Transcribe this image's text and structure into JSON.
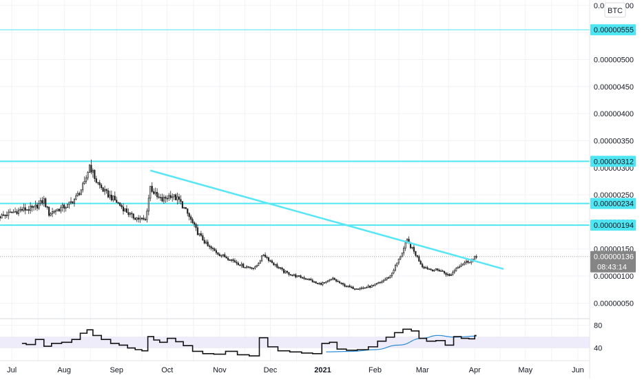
{
  "currency_label": "BTC",
  "chart_data": {
    "type": "candlestick",
    "price_axis": {
      "tick_labels": [
        "0.00000600",
        "0.00000500",
        "0.00000450",
        "0.00000400",
        "0.00000350",
        "0.00000300",
        "0.00000250",
        "0.00000200",
        "0.00000150",
        "0.00000100",
        "0.00000050"
      ],
      "ylim": [
        2.5e-07,
        6.1e-06
      ]
    },
    "time_axis": {
      "tick_labels": [
        "Jul",
        "Aug",
        "Sep",
        "Oct",
        "Nov",
        "Dec",
        "2021",
        "Feb",
        "Mar",
        "Apr",
        "May",
        "Jun"
      ],
      "tick_dates": [
        "2020-07-01",
        "2020-08-01",
        "2020-09-01",
        "2020-10-01",
        "2020-11-01",
        "2020-12-01",
        "2021-01-01",
        "2021-02-01",
        "2021-03-01",
        "2021-04-01",
        "2021-05-01",
        "2021-06-01"
      ],
      "xlim": [
        "2020-06-24",
        "2021-06-08"
      ]
    },
    "current_price": {
      "label": "0.00000136",
      "countdown": "08:43:14",
      "value": 1.36e-06
    },
    "horizontal_levels": [
      {
        "label": "0.00000555",
        "value": 5.55e-06
      },
      {
        "label": "0.00000312",
        "value": 3.12e-06
      },
      {
        "label": "0.00000234",
        "value": 2.34e-06
      },
      {
        "label": "0.00000194",
        "value": 1.94e-06
      }
    ],
    "trendline": {
      "start": {
        "date": "2020-09-21",
        "value": 2.95e-06
      },
      "end": {
        "date": "2021-04-18",
        "value": 1.13e-06
      }
    },
    "candle_path": [
      [
        "2020-06-24",
        2.1e-06
      ],
      [
        "2020-07-06",
        2.22e-06
      ],
      [
        "2020-07-14",
        2.25e-06
      ],
      [
        "2020-07-20",
        2.4e-06
      ],
      [
        "2020-07-23",
        2.15e-06
      ],
      [
        "2020-07-27",
        2.22e-06
      ],
      [
        "2020-08-03",
        2.3e-06
      ],
      [
        "2020-08-08",
        2.45e-06
      ],
      [
        "2020-08-13",
        2.7e-06
      ],
      [
        "2020-08-16",
        3.05e-06
      ],
      [
        "2020-08-20",
        2.75e-06
      ],
      [
        "2020-08-25",
        2.55e-06
      ],
      [
        "2020-08-31",
        2.4e-06
      ],
      [
        "2020-09-05",
        2.25e-06
      ],
      [
        "2020-09-10",
        2.1e-06
      ],
      [
        "2020-09-14",
        2.06e-06
      ],
      [
        "2020-09-18",
        2.03e-06
      ],
      [
        "2020-09-21",
        2.65e-06
      ],
      [
        "2020-09-25",
        2.45e-06
      ],
      [
        "2020-09-28",
        2.4e-06
      ],
      [
        "2020-10-03",
        2.5e-06
      ],
      [
        "2020-10-08",
        2.4e-06
      ],
      [
        "2020-10-13",
        2.15e-06
      ],
      [
        "2020-10-19",
        1.8e-06
      ],
      [
        "2020-10-25",
        1.55e-06
      ],
      [
        "2020-11-01",
        1.4e-06
      ],
      [
        "2020-11-08",
        1.3e-06
      ],
      [
        "2020-11-15",
        1.18e-06
      ],
      [
        "2020-11-22",
        1.15e-06
      ],
      [
        "2020-11-27",
        1.4e-06
      ],
      [
        "2020-12-02",
        1.25e-06
      ],
      [
        "2020-12-09",
        1.08e-06
      ],
      [
        "2020-12-16",
        1e-06
      ],
      [
        "2020-12-23",
        9.5e-07
      ],
      [
        "2020-12-29",
        8.5e-07
      ],
      [
        "2021-01-03",
        8.8e-07
      ],
      [
        "2021-01-07",
        9.5e-07
      ],
      [
        "2021-01-12",
        8.5e-07
      ],
      [
        "2021-01-18",
        7.8e-07
      ],
      [
        "2021-01-25",
        7.8e-07
      ],
      [
        "2021-01-31",
        8.2e-07
      ],
      [
        "2021-02-05",
        9e-07
      ],
      [
        "2021-02-10",
        1e-06
      ],
      [
        "2021-02-15",
        1.3e-06
      ],
      [
        "2021-02-20",
        1.65e-06
      ],
      [
        "2021-02-25",
        1.4e-06
      ],
      [
        "2021-03-01",
        1.18e-06
      ],
      [
        "2021-03-06",
        1.12e-06
      ],
      [
        "2021-03-12",
        1.1e-06
      ],
      [
        "2021-03-17",
        1e-06
      ],
      [
        "2021-03-22",
        1.18e-06
      ],
      [
        "2021-03-26",
        1.25e-06
      ],
      [
        "2021-03-31",
        1.3e-06
      ],
      [
        "2021-04-02",
        1.36e-06
      ]
    ],
    "oscillator": {
      "tick_labels": [
        "80",
        "40"
      ],
      "ylim": [
        20,
        88
      ],
      "band": [
        40,
        60
      ],
      "line_path": [
        [
          "2020-07-07",
          48
        ],
        [
          "2020-07-12",
          46
        ],
        [
          "2020-07-18",
          55
        ],
        [
          "2020-07-22",
          43
        ],
        [
          "2020-07-27",
          48
        ],
        [
          "2020-08-03",
          50
        ],
        [
          "2020-08-08",
          55
        ],
        [
          "2020-08-13",
          66
        ],
        [
          "2020-08-16",
          72
        ],
        [
          "2020-08-20",
          62
        ],
        [
          "2020-08-26",
          55
        ],
        [
          "2020-08-31",
          48
        ],
        [
          "2020-09-05",
          45
        ],
        [
          "2020-09-10",
          40
        ],
        [
          "2020-09-14",
          37
        ],
        [
          "2020-09-18",
          35
        ],
        [
          "2020-09-21",
          60
        ],
        [
          "2020-09-25",
          54
        ],
        [
          "2020-09-28",
          50
        ],
        [
          "2020-10-04",
          57
        ],
        [
          "2020-10-08",
          51
        ],
        [
          "2020-10-13",
          44
        ],
        [
          "2020-10-19",
          34
        ],
        [
          "2020-10-25",
          30
        ],
        [
          "2020-11-01",
          29
        ],
        [
          "2020-11-08",
          34
        ],
        [
          "2020-11-15",
          28
        ],
        [
          "2020-11-22",
          26
        ],
        [
          "2020-11-27",
          58
        ],
        [
          "2020-12-02",
          42
        ],
        [
          "2020-12-09",
          35
        ],
        [
          "2020-12-16",
          33
        ],
        [
          "2020-12-23",
          31
        ],
        [
          "2020-12-29",
          30
        ],
        [
          "2021-01-03",
          48
        ],
        [
          "2021-01-07",
          50
        ],
        [
          "2021-01-12",
          38
        ],
        [
          "2021-01-18",
          36
        ],
        [
          "2021-01-25",
          37
        ],
        [
          "2021-01-31",
          42
        ],
        [
          "2021-02-05",
          52
        ],
        [
          "2021-02-10",
          59
        ],
        [
          "2021-02-15",
          67
        ],
        [
          "2021-02-20",
          73
        ],
        [
          "2021-02-25",
          70
        ],
        [
          "2021-03-01",
          57
        ],
        [
          "2021-03-06",
          52
        ],
        [
          "2021-03-12",
          53
        ],
        [
          "2021-03-17",
          45
        ],
        [
          "2021-03-22",
          60
        ],
        [
          "2021-03-26",
          57
        ],
        [
          "2021-03-31",
          56
        ],
        [
          "2021-04-02",
          62
        ]
      ],
      "ma_path": [
        [
          "2021-01-03",
          33
        ],
        [
          "2021-01-18",
          34
        ],
        [
          "2021-02-01",
          37
        ],
        [
          "2021-02-15",
          45
        ],
        [
          "2021-03-01",
          57
        ],
        [
          "2021-03-10",
          62
        ],
        [
          "2021-03-20",
          59
        ],
        [
          "2021-04-02",
          61
        ]
      ]
    },
    "colors": {
      "levels": "#4DE6F2",
      "trendline": "#57E6F5",
      "candle": "#222222",
      "oscillator": "#111111",
      "oscillator_ma": "#2B8BD6",
      "band": "#EEEBFA",
      "price_tag": "#858585"
    }
  }
}
